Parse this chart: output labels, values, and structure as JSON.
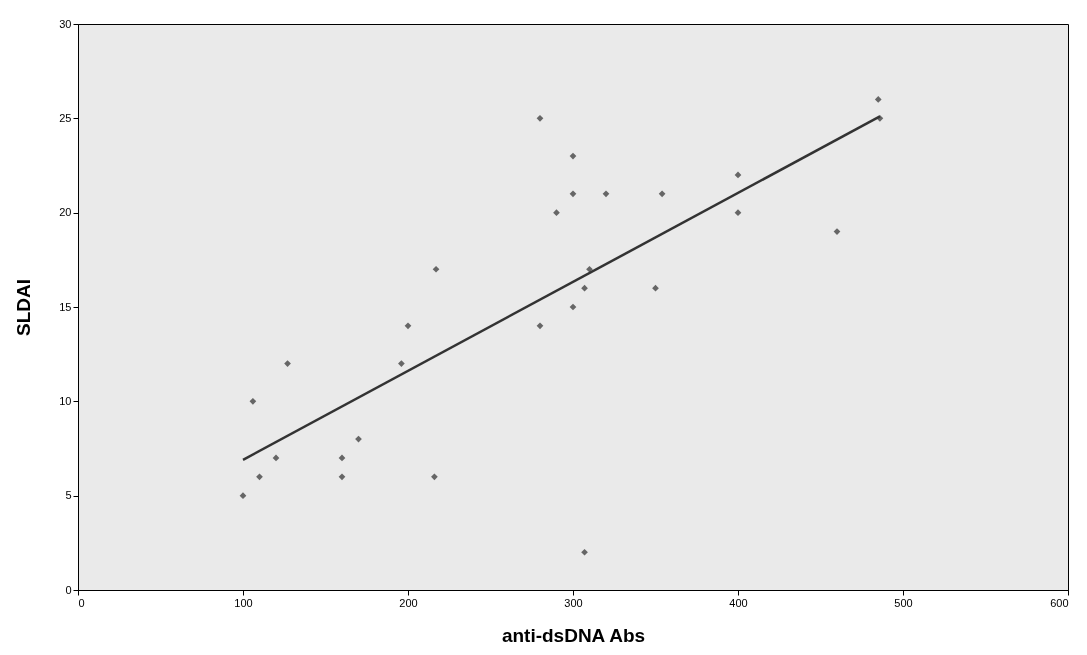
{
  "chart_data": {
    "type": "scatter",
    "xlabel": "anti-dsDNA Abs",
    "ylabel": "SLDAI",
    "xlim": [
      0,
      600
    ],
    "ylim": [
      0,
      30
    ],
    "xticks": [
      0,
      100,
      200,
      300,
      400,
      500,
      600
    ],
    "yticks": [
      0,
      5,
      10,
      15,
      20,
      25,
      30
    ],
    "grid": false,
    "marker": "diamond",
    "series": [
      {
        "color": "#666666",
        "x": [
          100,
          106,
          110,
          120,
          127,
          160,
          160,
          170,
          196,
          200,
          216,
          217,
          280,
          280,
          290,
          300,
          300,
          300,
          307,
          307,
          310,
          320,
          350,
          354,
          400,
          400,
          460,
          485,
          486
        ],
        "values": [
          5,
          10,
          6,
          7,
          12,
          7,
          6,
          8,
          12,
          14,
          6,
          17,
          25,
          14,
          20,
          23,
          21,
          15,
          16,
          2,
          17,
          21,
          16,
          21,
          22,
          20,
          19,
          26,
          25
        ]
      },
      {
        "type": "line",
        "color": "#333333",
        "x": [
          100,
          486
        ],
        "values": [
          6.9,
          25.1
        ],
        "marker": "none",
        "line_style": "solid"
      }
    ]
  }
}
